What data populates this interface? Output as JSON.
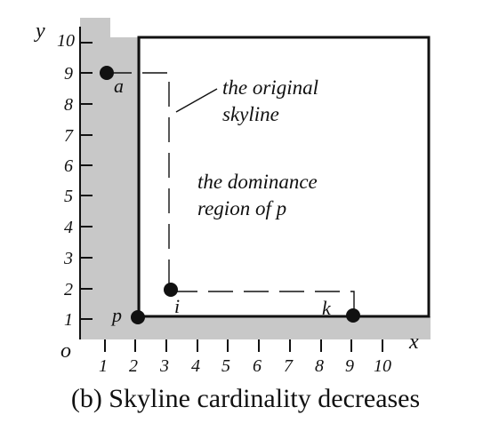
{
  "axes": {
    "x_label": "x",
    "y_label": "y",
    "origin_label": "o",
    "x_ticks": [
      "1",
      "2",
      "3",
      "4",
      "5",
      "6",
      "7",
      "8",
      "9",
      "10"
    ],
    "y_ticks": [
      "1",
      "2",
      "3",
      "4",
      "5",
      "6",
      "7",
      "8",
      "9",
      "10"
    ]
  },
  "points": [
    {
      "id": "a",
      "label": "a",
      "x": 1,
      "y": 9
    },
    {
      "id": "i",
      "label": "i",
      "x": 3,
      "y": 2
    },
    {
      "id": "p",
      "label": "p",
      "x": 2,
      "y": 1
    },
    {
      "id": "k",
      "label": "k",
      "x": 9,
      "y": 1
    }
  ],
  "annotations": {
    "original_skyline": [
      "the original",
      "skyline"
    ],
    "dominance_region": [
      "the dominance",
      "region of p"
    ]
  },
  "caption": "(b) Skyline cardinality decreases",
  "colors": {
    "shaded_region": "#c8c8c8",
    "ink": "#111111"
  }
}
